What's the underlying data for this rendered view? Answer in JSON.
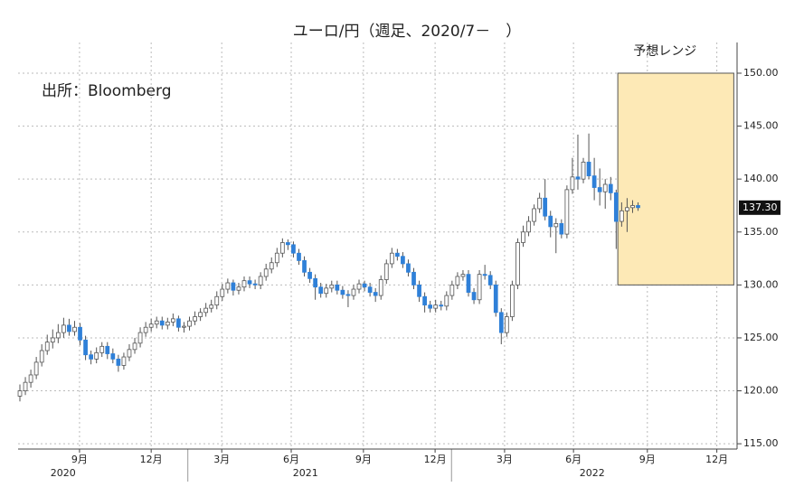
{
  "chart_data": {
    "type": "candlestick",
    "title": "ユーロ/円（週足、2020/7－　）",
    "source": "出所：Bloomberg",
    "categories": [
      null,
      null,
      null,
      null,
      null,
      null,
      null,
      null,
      null,
      null,
      null,
      null,
      null,
      null,
      null,
      null,
      null,
      null,
      null,
      null,
      null,
      null,
      null,
      null,
      null,
      null,
      null,
      null,
      null,
      null,
      null,
      null,
      null,
      null,
      null,
      null,
      null,
      null,
      null,
      null,
      null,
      null,
      null,
      null,
      null,
      null,
      null,
      null,
      null,
      null,
      null,
      null,
      null,
      null,
      null,
      null,
      null,
      null,
      null,
      null,
      null,
      null,
      null,
      null,
      null,
      null,
      null,
      null,
      null,
      null,
      null,
      null,
      null,
      null,
      null,
      null,
      null,
      null,
      null,
      null,
      null,
      null,
      null,
      null,
      null,
      null,
      null,
      null,
      null,
      null,
      null,
      null,
      null,
      null,
      null,
      null,
      null,
      null,
      null,
      null,
      null,
      null,
      null,
      null,
      null,
      null,
      null,
      null,
      null,
      null,
      null,
      null,
      null,
      null
    ],
    "ohlc": [
      [
        119.5,
        120.6,
        119.0,
        120.0
      ],
      [
        120.0,
        121.3,
        119.6,
        120.8
      ],
      [
        120.8,
        122.0,
        120.3,
        121.5
      ],
      [
        121.5,
        123.2,
        121.1,
        122.7
      ],
      [
        122.7,
        124.4,
        122.3,
        123.8
      ],
      [
        123.8,
        125.3,
        123.4,
        124.6
      ],
      [
        124.6,
        125.8,
        124.0,
        125.0
      ],
      [
        125.0,
        126.3,
        124.5,
        125.5
      ],
      [
        125.5,
        126.9,
        125.0,
        126.2
      ],
      [
        126.2,
        126.8,
        125.2,
        125.6
      ],
      [
        125.6,
        126.6,
        125.2,
        126.0
      ],
      [
        126.0,
        126.4,
        124.3,
        124.8
      ],
      [
        124.8,
        125.2,
        122.9,
        123.4
      ],
      [
        123.4,
        123.8,
        122.5,
        123.0
      ],
      [
        123.0,
        124.1,
        122.6,
        123.6
      ],
      [
        123.6,
        124.6,
        123.2,
        124.2
      ],
      [
        124.2,
        124.6,
        123.0,
        123.5
      ],
      [
        123.5,
        124.0,
        122.6,
        123.0
      ],
      [
        123.0,
        123.4,
        121.8,
        122.4
      ],
      [
        122.4,
        123.6,
        122.0,
        123.2
      ],
      [
        123.2,
        124.4,
        122.8,
        123.9
      ],
      [
        123.9,
        125.0,
        123.5,
        124.5
      ],
      [
        124.5,
        126.0,
        124.1,
        125.5
      ],
      [
        125.5,
        126.5,
        125.1,
        126.0
      ],
      [
        126.0,
        126.8,
        125.6,
        126.3
      ],
      [
        126.3,
        127.0,
        125.9,
        126.6
      ],
      [
        126.6,
        127.0,
        125.8,
        126.2
      ],
      [
        126.2,
        126.9,
        125.8,
        126.5
      ],
      [
        126.5,
        127.3,
        126.1,
        126.8
      ],
      [
        126.8,
        127.1,
        125.6,
        126.0
      ],
      [
        126.0,
        126.5,
        125.5,
        126.1
      ],
      [
        126.1,
        127.0,
        125.7,
        126.6
      ],
      [
        126.6,
        127.5,
        126.2,
        127.0
      ],
      [
        127.0,
        127.8,
        126.6,
        127.4
      ],
      [
        127.4,
        128.3,
        127.0,
        127.8
      ],
      [
        127.8,
        128.6,
        127.4,
        128.1
      ],
      [
        128.1,
        129.4,
        127.7,
        128.9
      ],
      [
        128.9,
        130.1,
        128.5,
        129.6
      ],
      [
        129.6,
        130.6,
        129.2,
        130.2
      ],
      [
        130.2,
        130.5,
        129.0,
        129.5
      ],
      [
        129.5,
        130.2,
        129.1,
        129.8
      ],
      [
        129.8,
        130.8,
        129.4,
        130.4
      ],
      [
        130.4,
        130.8,
        129.7,
        130.1
      ],
      [
        130.1,
        130.5,
        129.6,
        130.0
      ],
      [
        130.0,
        131.2,
        129.6,
        130.8
      ],
      [
        130.8,
        132.0,
        130.4,
        131.5
      ],
      [
        131.5,
        132.6,
        131.1,
        132.1
      ],
      [
        132.1,
        133.5,
        131.7,
        133.0
      ],
      [
        133.0,
        134.4,
        132.6,
        134.0
      ],
      [
        134.0,
        134.3,
        133.3,
        133.8
      ],
      [
        133.8,
        134.1,
        132.6,
        133.0
      ],
      [
        133.0,
        133.4,
        131.9,
        132.3
      ],
      [
        132.3,
        132.7,
        130.8,
        131.2
      ],
      [
        131.2,
        131.6,
        130.2,
        130.6
      ],
      [
        130.6,
        131.0,
        128.6,
        129.8
      ],
      [
        129.8,
        130.2,
        128.8,
        129.2
      ],
      [
        129.2,
        130.1,
        128.8,
        129.7
      ],
      [
        129.7,
        130.4,
        129.3,
        130.0
      ],
      [
        130.0,
        130.4,
        129.1,
        129.5
      ],
      [
        129.5,
        129.9,
        128.7,
        129.1
      ],
      [
        129.1,
        129.5,
        127.9,
        129.0
      ],
      [
        129.0,
        130.0,
        128.6,
        129.6
      ],
      [
        129.6,
        130.5,
        129.2,
        130.1
      ],
      [
        130.1,
        130.4,
        129.4,
        129.8
      ],
      [
        129.8,
        130.2,
        128.9,
        129.3
      ],
      [
        129.3,
        129.7,
        128.4,
        129.0
      ],
      [
        129.0,
        130.9,
        128.6,
        130.5
      ],
      [
        130.5,
        132.4,
        130.1,
        132.0
      ],
      [
        132.0,
        133.5,
        131.6,
        133.0
      ],
      [
        133.0,
        133.4,
        132.3,
        132.7
      ],
      [
        132.7,
        133.1,
        131.6,
        132.0
      ],
      [
        132.0,
        132.4,
        130.8,
        131.2
      ],
      [
        131.2,
        131.6,
        129.6,
        130.0
      ],
      [
        130.0,
        130.4,
        128.4,
        128.9
      ],
      [
        128.9,
        129.3,
        127.4,
        128.1
      ],
      [
        128.1,
        128.5,
        127.4,
        127.8
      ],
      [
        127.8,
        128.6,
        127.4,
        128.1
      ],
      [
        128.1,
        128.5,
        127.6,
        128.0
      ],
      [
        128.0,
        129.4,
        127.6,
        129.0
      ],
      [
        129.0,
        130.4,
        128.6,
        130.0
      ],
      [
        130.0,
        131.2,
        129.6,
        130.8
      ],
      [
        130.8,
        131.4,
        130.4,
        131.0
      ],
      [
        131.0,
        131.4,
        128.9,
        129.3
      ],
      [
        129.3,
        129.7,
        128.2,
        128.6
      ],
      [
        128.6,
        131.4,
        128.2,
        131.0
      ],
      [
        131.0,
        131.9,
        130.5,
        130.9
      ],
      [
        130.9,
        131.3,
        129.6,
        130.0
      ],
      [
        130.0,
        130.4,
        127.0,
        127.4
      ],
      [
        127.4,
        127.8,
        124.4,
        125.5
      ],
      [
        125.5,
        127.4,
        125.1,
        127.0
      ],
      [
        127.0,
        130.4,
        126.6,
        130.0
      ],
      [
        130.0,
        134.4,
        129.6,
        134.0
      ],
      [
        134.0,
        135.6,
        133.6,
        135.0
      ],
      [
        135.0,
        136.5,
        134.6,
        136.0
      ],
      [
        136.0,
        137.6,
        135.6,
        137.2
      ],
      [
        137.2,
        138.7,
        136.8,
        138.2
      ],
      [
        138.2,
        140.0,
        136.1,
        136.5
      ],
      [
        136.5,
        137.0,
        134.5,
        135.5
      ],
      [
        135.5,
        136.3,
        133.0,
        135.8
      ],
      [
        135.8,
        136.2,
        134.4,
        134.8
      ],
      [
        134.8,
        139.4,
        134.4,
        139.0
      ],
      [
        139.0,
        142.0,
        138.6,
        140.2
      ],
      [
        140.2,
        144.2,
        139.0,
        140.0
      ],
      [
        140.0,
        142.0,
        139.6,
        141.6
      ],
      [
        141.6,
        144.3,
        140.0,
        140.3
      ],
      [
        140.3,
        142.0,
        138.0,
        139.2
      ],
      [
        139.2,
        141.0,
        137.5,
        138.8
      ],
      [
        138.8,
        140.0,
        137.2,
        139.5
      ],
      [
        139.5,
        140.2,
        138.0,
        138.7
      ],
      [
        138.7,
        139.0,
        133.4,
        136.0
      ],
      [
        136.0,
        137.8,
        135.5,
        137.0
      ],
      [
        137.0,
        138.2,
        135.0,
        137.3
      ],
      [
        137.3,
        138.0,
        136.8,
        137.5
      ],
      [
        137.5,
        137.8,
        137.0,
        137.3
      ]
    ],
    "up_color": "#ffffff",
    "down_color": "#2f80d8",
    "wick_color": "#555555",
    "xlim": [
      -0.33,
      131.1
    ],
    "xticks": [
      {
        "value": 10.9,
        "label": "9月"
      },
      {
        "value": 24,
        "label": "12月"
      },
      {
        "value": 36.9,
        "label": "3月"
      },
      {
        "value": 49.6,
        "label": "6月"
      },
      {
        "value": 62.8,
        "label": "9月"
      },
      {
        "value": 75.9,
        "label": "12月"
      },
      {
        "value": 88.6,
        "label": "3月"
      },
      {
        "value": 101.2,
        "label": "6月"
      },
      {
        "value": 114.7,
        "label": "9月"
      },
      {
        "value": 127.4,
        "label": "12月"
      }
    ],
    "year_ticks": [
      {
        "value": 7.9,
        "label": "2020"
      },
      {
        "value": 52.2,
        "label": "2021"
      },
      {
        "value": 104.6,
        "label": "2022"
      }
    ],
    "year_separators": [
      30.7,
      78.9
    ],
    "ylim": [
      114.5,
      152.9
    ],
    "yticks": [
      {
        "value": 115,
        "label": "115.00"
      },
      {
        "value": 120,
        "label": "120.00"
      },
      {
        "value": 125,
        "label": "125.00"
      },
      {
        "value": 130,
        "label": "130.00"
      },
      {
        "value": 135,
        "label": "135.00"
      },
      {
        "value": 140,
        "label": "140.00"
      },
      {
        "value": 145,
        "label": "145.00"
      },
      {
        "value": 150,
        "label": "150.00"
      }
    ],
    "grid": true,
    "last_price": {
      "value": 137.3,
      "label": "137.30"
    },
    "forecast_range": {
      "label": "予想レンジ",
      "ylim": [
        130,
        150
      ],
      "xlim": [
        109.3,
        130.5
      ],
      "color": "#fde9b6"
    }
  }
}
